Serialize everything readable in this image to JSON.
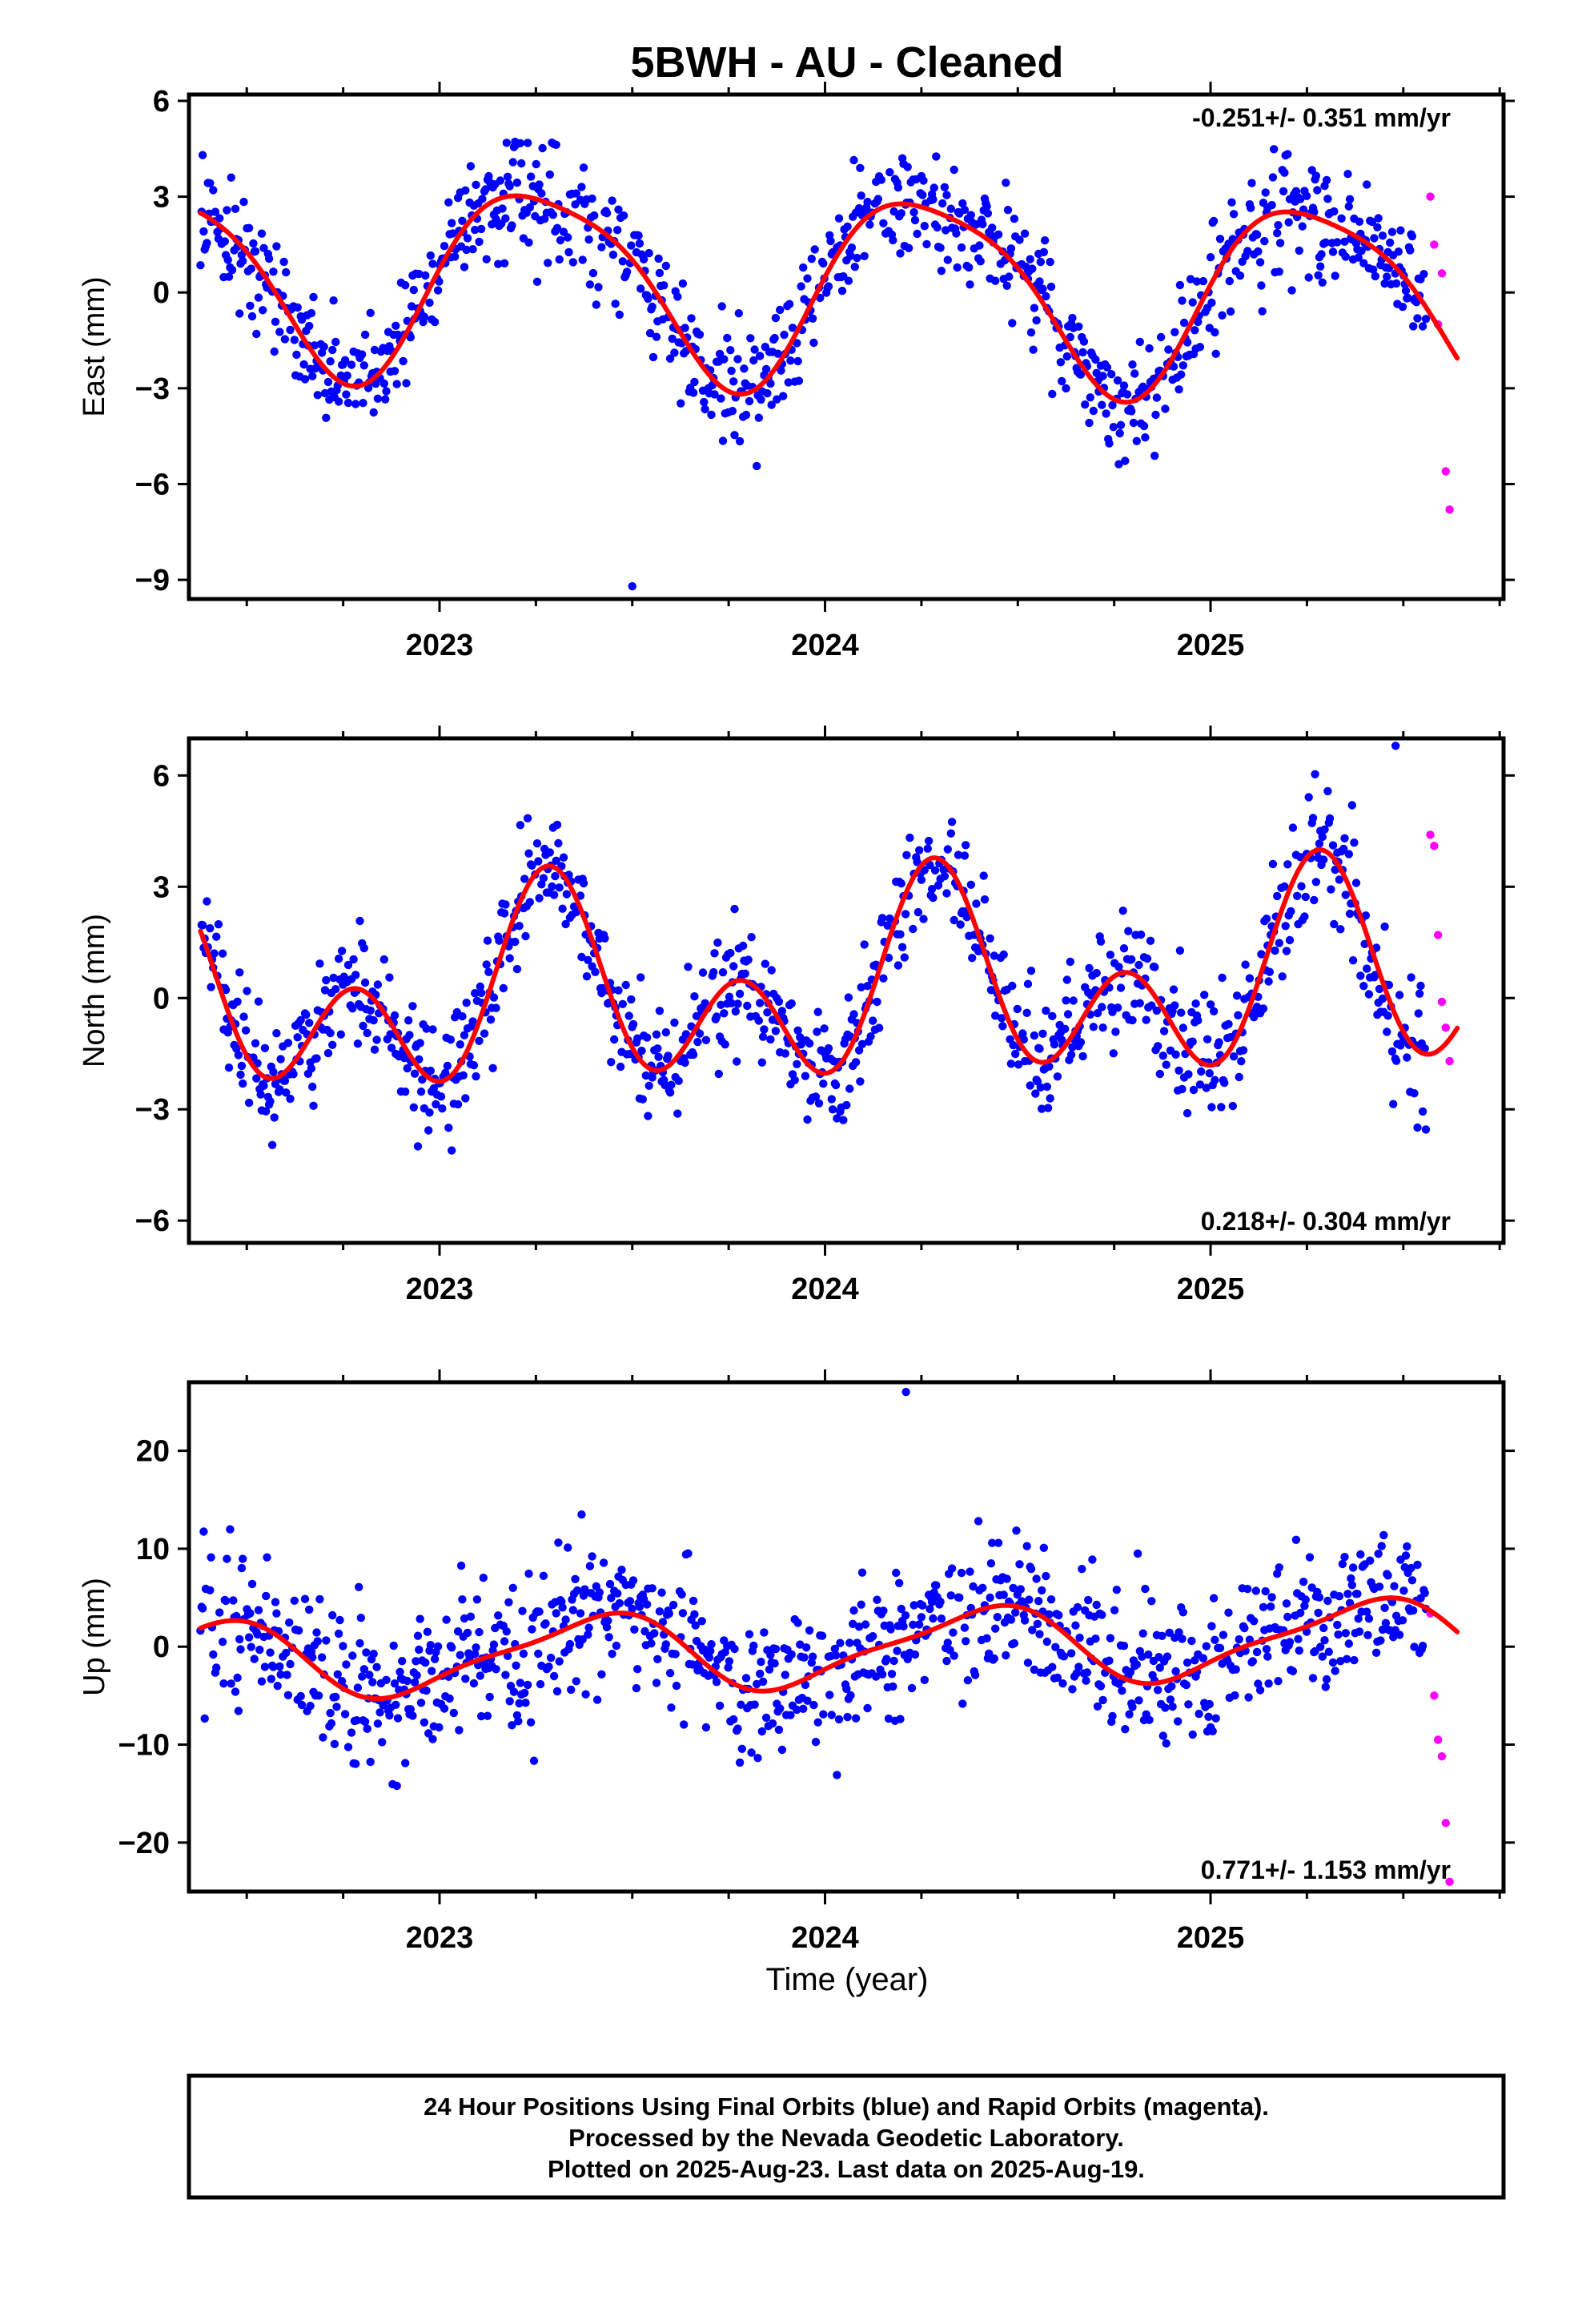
{
  "title": "5BWH  - AU - Cleaned",
  "xlabel": "Time (year)",
  "footer": {
    "line1": "24 Hour Positions Using Final Orbits (blue) and Rapid Orbits (magenta).",
    "line2": "Processed by the Nevada Geodetic Laboratory.",
    "line3": "Plotted on 2025-Aug-23. Last data on 2025-Aug-19."
  },
  "colors": {
    "final": "#0000ff",
    "rapid": "#ff00ff",
    "model": "#ff0000"
  },
  "chart_data": [
    {
      "type": "scatter",
      "component": "east",
      "ylabel": "East (mm)",
      "rate_label": "-0.251+/- 0.351 mm/yr",
      "rate_position": "top-right",
      "xlim": [
        2022.35,
        2025.76
      ],
      "ylim": [
        -9.6,
        6.2
      ],
      "x_ticks": [
        2023,
        2024,
        2025
      ],
      "y_ticks": [
        -9,
        -6,
        -3,
        0,
        3,
        6
      ],
      "model": {
        "name": "model",
        "offset": 0.24,
        "trend": -0.251,
        "ref_year": 2024.0,
        "cos1": -0.2,
        "sin1": 2.95,
        "cos2": 0.45,
        "sin2": 0.35
      },
      "scatter": {
        "scatter_sd": 0.9,
        "spike_years": [
          2023.5
        ],
        "spike_values": [
          -9.2
        ]
      },
      "rapid": {
        "x": [
          2025.57,
          2025.58,
          2025.59,
          2025.6,
          2025.61,
          2025.62
        ],
        "values": [
          3.0,
          1.5,
          -1.0,
          0.6,
          -5.6,
          -6.8
        ]
      }
    },
    {
      "type": "scatter",
      "component": "north",
      "ylabel": "North (mm)",
      "rate_label": "0.218+/- 0.304 mm/yr",
      "rate_position": "bottom-right",
      "xlim": [
        2022.35,
        2025.76
      ],
      "ylim": [
        -6.6,
        7.0
      ],
      "x_ticks": [
        2023,
        2024,
        2025
      ],
      "y_ticks": [
        -6,
        -3,
        0,
        3,
        6
      ],
      "model": {
        "name": "model",
        "offset": 0.17,
        "trend": 0.218,
        "ref_year": 2024.0,
        "cos1": -0.4,
        "sin1": 1.55,
        "cos2": -1.8,
        "sin2": -0.75
      },
      "scatter": {
        "scatter_sd": 0.85,
        "spike_years": [
          2025.48
        ],
        "spike_values": [
          6.8
        ]
      },
      "rapid": {
        "x": [
          2025.57,
          2025.58,
          2025.59,
          2025.6,
          2025.61,
          2025.62
        ],
        "values": [
          4.4,
          4.1,
          1.7,
          -0.1,
          -0.8,
          -1.7
        ]
      }
    },
    {
      "type": "scatter",
      "component": "up",
      "ylabel": "Up (mm)",
      "rate_label": "0.771+/- 1.153 mm/yr",
      "rate_position": "bottom-right",
      "xlim": [
        2022.35,
        2025.76
      ],
      "ylim": [
        -25,
        27
      ],
      "x_ticks": [
        2023,
        2024,
        2025
      ],
      "y_ticks": [
        -20,
        -10,
        0,
        10,
        20
      ],
      "model": {
        "name": "model",
        "offset": -0.2,
        "trend": 0.771,
        "ref_year": 2024.0,
        "cos1": -3.0,
        "sin1": 2.2,
        "cos2": 0.9,
        "sin2": 0.4
      },
      "scatter": {
        "scatter_sd": 3.6,
        "spike_years": [
          2024.21
        ],
        "spike_values": [
          26.0
        ]
      },
      "rapid": {
        "x": [
          2025.57,
          2025.58,
          2025.59,
          2025.6,
          2025.61,
          2025.62
        ],
        "values": [
          3.4,
          -5.0,
          -9.5,
          -11.2,
          -18.0,
          -24.0
        ]
      }
    }
  ]
}
